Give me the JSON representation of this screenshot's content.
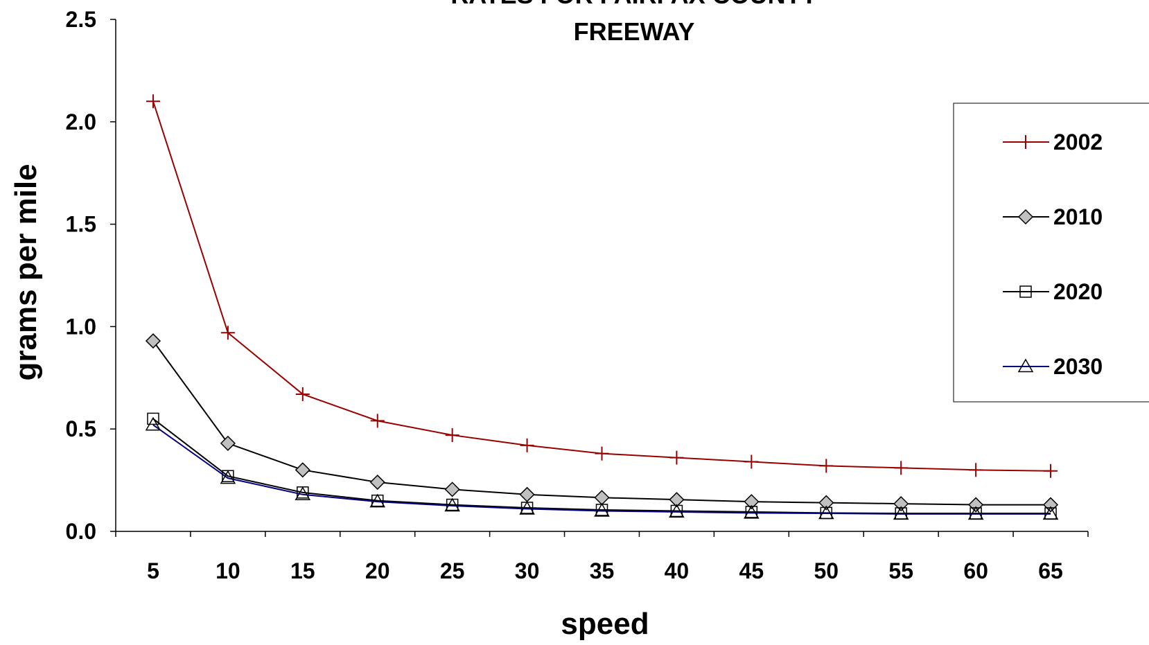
{
  "chart_data": {
    "type": "line",
    "title_lines": [
      "RATES FOR FAIRFAX COUNTY",
      "FREEWAY"
    ],
    "xlabel": "speed",
    "ylabel": "grams per mile",
    "x": [
      5,
      10,
      15,
      20,
      25,
      30,
      35,
      40,
      45,
      50,
      55,
      60,
      65
    ],
    "ylim": [
      0,
      2.5
    ],
    "y_ticks": [
      "0.0",
      "0.5",
      "1.0",
      "1.5",
      "2.0",
      "2.5"
    ],
    "grid": false,
    "legend_position": "right",
    "series": [
      {
        "name": "2002",
        "marker": "plus",
        "color": "#990000",
        "values": [
          2.1,
          0.97,
          0.67,
          0.54,
          0.47,
          0.42,
          0.38,
          0.36,
          0.34,
          0.32,
          0.31,
          0.3,
          0.295
        ]
      },
      {
        "name": "2010",
        "marker": "diamond",
        "color": "#000000",
        "values": [
          0.93,
          0.43,
          0.3,
          0.24,
          0.205,
          0.18,
          0.165,
          0.155,
          0.145,
          0.14,
          0.135,
          0.13,
          0.13
        ]
      },
      {
        "name": "2020",
        "marker": "square",
        "color": "#000000",
        "values": [
          0.55,
          0.27,
          0.19,
          0.15,
          0.13,
          0.115,
          0.105,
          0.1,
          0.095,
          0.09,
          0.088,
          0.088,
          0.088
        ]
      },
      {
        "name": "2030",
        "marker": "triangle",
        "color": "#000080",
        "values": [
          0.52,
          0.26,
          0.18,
          0.145,
          0.125,
          0.11,
          0.1,
          0.095,
          0.09,
          0.088,
          0.085,
          0.085,
          0.085
        ]
      }
    ]
  }
}
